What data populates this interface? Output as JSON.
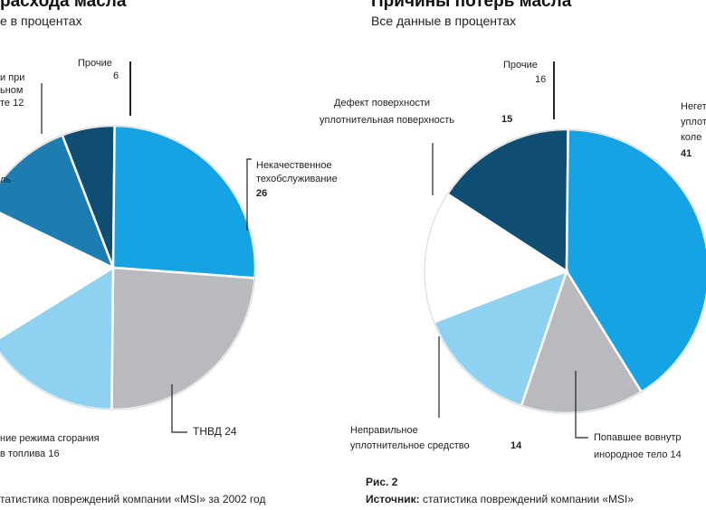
{
  "colors": {
    "dark_blue": "#0f4e72",
    "mid_blue": "#1d7db0",
    "bright_blue": "#16a3e4",
    "light_blue": "#8fd1f1",
    "gray": "#b9babd",
    "white": "#ffffff",
    "leader": "#222222"
  },
  "left": {
    "title": "расхода масла",
    "subtitle": "е в процентах",
    "labels": {
      "prochie": "Прочие",
      "prochie_val": "6",
      "nekach_l1": "Некачественное",
      "nekach_l2": "техобслуживание",
      "nekach_val": "26",
      "tnvd": "ТНВД 24",
      "rezhim_l1": "ние режима сгорания",
      "rezhim_l2": "в топлива  16",
      "top_l1": "и при",
      "top_l2": "ьном",
      "top_l3": "те 12",
      "side": "ль"
    },
    "caption": "татистика повреждений компании «MSI» за 2002 год"
  },
  "right": {
    "title": "Причины потерь масла",
    "subtitle": "Все данные в процентах",
    "labels": {
      "prochie": "Прочие",
      "prochie_val": "16",
      "defekt_l1": "Дефект поверхности",
      "defekt_l2": "уплотнительная поверхность",
      "defekt_val": "15",
      "nepravil_l1": "Неправильное",
      "nepravil_l2": "уплотнительное средство",
      "nepravil_val": "14",
      "popav_l1": "Попавшее вовнутр",
      "popav_l2": "инородное тело  14",
      "neget_l1": "Негет",
      "neget_l2": "уплот",
      "neget_l3": "коле",
      "neget_val": "41"
    },
    "fig": "Рис. 2",
    "caption_prefix": "Источник:",
    "caption": " статистика повреждений компании «MSI»"
  },
  "chart_data": [
    {
      "type": "pie",
      "title": "расхода масла",
      "subtitle": "е в процентах",
      "slices": [
        {
          "label": "Прочие",
          "value": 6
        },
        {
          "label": "Некачественное техобслуживание",
          "value": 26
        },
        {
          "label": "ТНВД",
          "value": 24
        },
        {
          "label": "ние режима сгорания в топлива",
          "value": 16
        },
        {
          "label": "",
          "value": 16
        },
        {
          "label": "и при ьном те",
          "value": 12
        }
      ]
    },
    {
      "type": "pie",
      "title": "Причины потерь масла",
      "subtitle": "Все данные в процентах",
      "slices": [
        {
          "label": "Прочие",
          "value": 16
        },
        {
          "label": "Негет уплот коле",
          "value": 41
        },
        {
          "label": "Попавшее вовнутр инородное тело",
          "value": 14
        },
        {
          "label": "Неправильное уплотнительное средство",
          "value": 14
        },
        {
          "label": "Дефект поверхности уплотнительная поверхность",
          "value": 15
        }
      ]
    }
  ]
}
